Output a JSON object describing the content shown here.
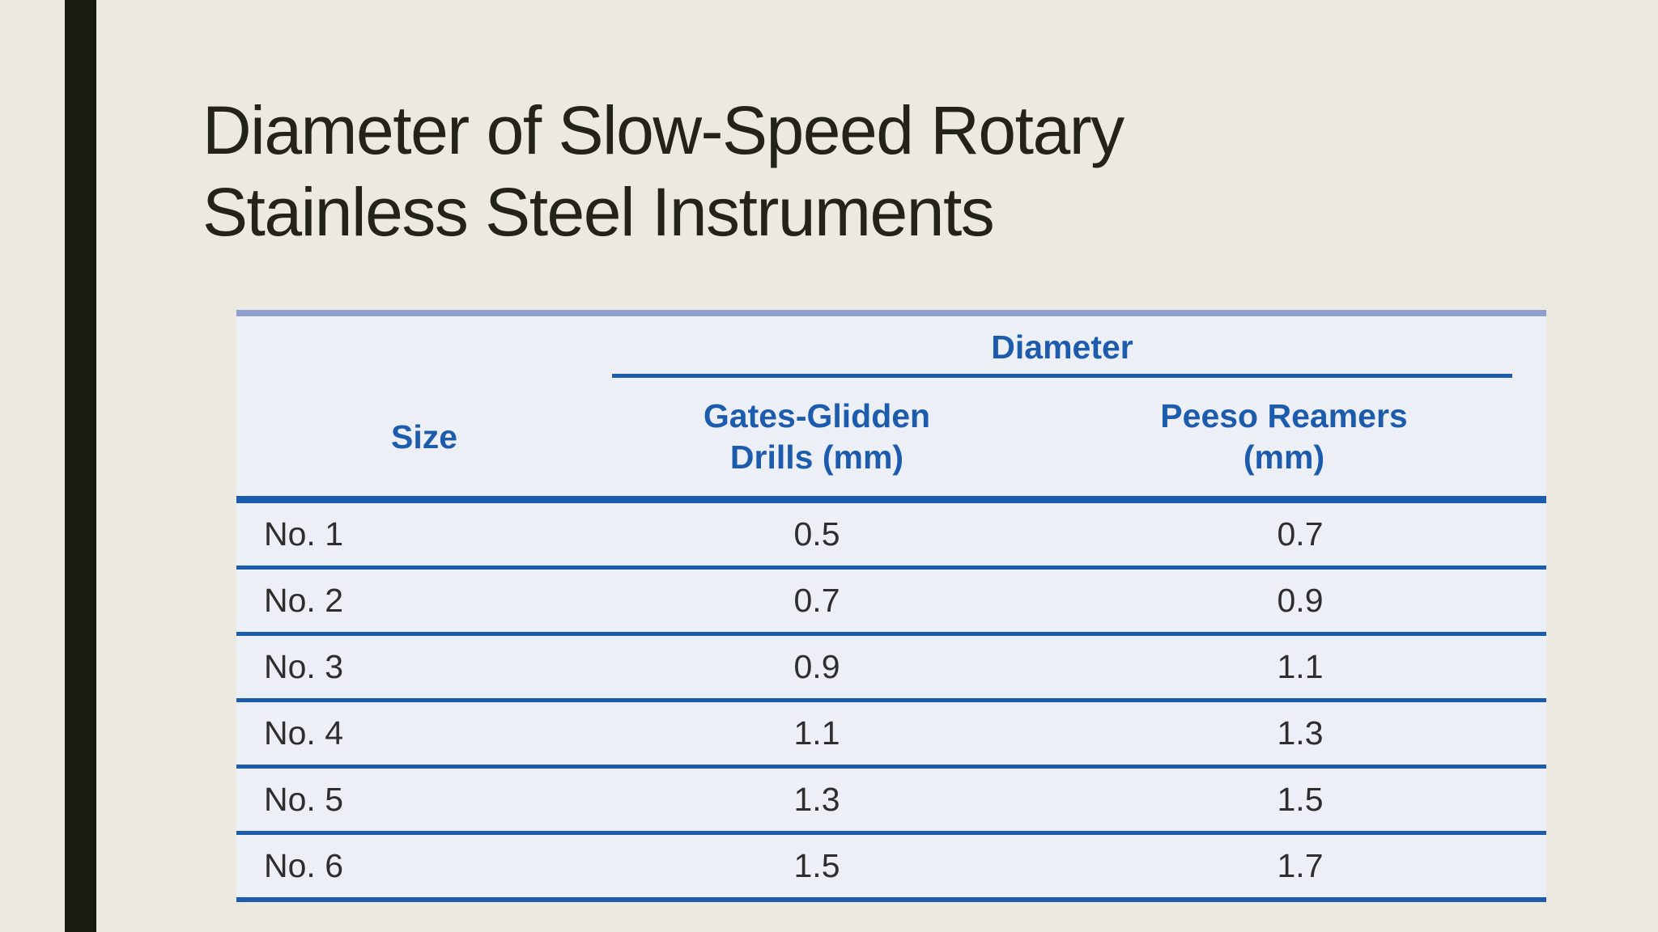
{
  "slide": {
    "title_line1": "Diameter of Slow-Speed Rotary",
    "title_line2": "Stainless Steel Instruments"
  },
  "table": {
    "spanning_header": "Diameter",
    "columns": {
      "size_label": "Size",
      "gates_line1": "Gates-Glidden",
      "gates_line2": "Drills (mm)",
      "peeso_line1": "Peeso Reamers",
      "peeso_line2": "(mm)"
    },
    "rows": [
      {
        "size": "No. 1",
        "gates": "0.5",
        "peeso": "0.7"
      },
      {
        "size": "No. 2",
        "gates": "0.7",
        "peeso": "0.9"
      },
      {
        "size": "No. 3",
        "gates": "0.9",
        "peeso": "1.1"
      },
      {
        "size": "No. 4",
        "gates": "1.1",
        "peeso": "1.3"
      },
      {
        "size": "No. 5",
        "gates": "1.3",
        "peeso": "1.5"
      },
      {
        "size": "No. 6",
        "gates": "1.5",
        "peeso": "1.7"
      }
    ]
  },
  "colors": {
    "background_cream": "#eceae0",
    "accent_bar_black": "#1b1a10",
    "table_background": "#edeff6",
    "table_top_border_periwinkle": "#8f9fce",
    "accent_blue": "#1d5cac",
    "title_text": "#23221b",
    "data_text": "#2e2e2e"
  }
}
